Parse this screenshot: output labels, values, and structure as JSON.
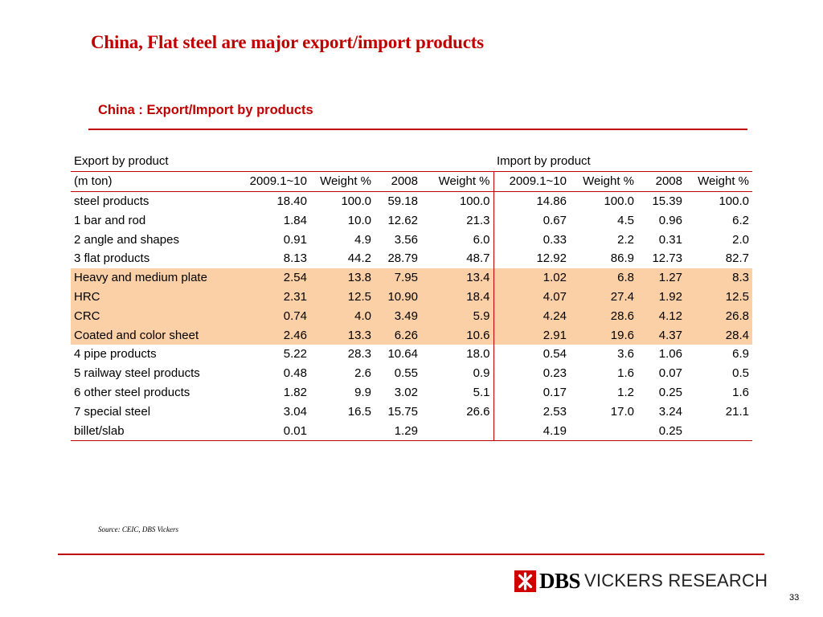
{
  "slide": {
    "title": "China, Flat steel are major export/import products",
    "subtitle": "China : Export/Import by products",
    "source": "Source: CEIC, DBS Vickers",
    "page_number": "33"
  },
  "logo": {
    "brand": "DBS",
    "text": "VICKERS RESEARCH",
    "accent_color": "#d00000"
  },
  "table": {
    "group_headers": [
      "Export by product",
      "Import by product"
    ],
    "columns": [
      "(m ton)",
      "2009.1~10",
      "Weight %",
      "2008",
      "Weight %",
      "2009.1~10",
      "Weight %",
      "2008",
      "Weight %"
    ],
    "highlight_color": "#fcd0a6",
    "rows": [
      {
        "label": "steel products",
        "cells": [
          "18.40",
          "100.0",
          "59.18",
          "100.0",
          "14.86",
          "100.0",
          "15.39",
          "100.0"
        ],
        "highlight": false
      },
      {
        "label": "1 bar and rod",
        "cells": [
          "1.84",
          "10.0",
          "12.62",
          "21.3",
          "0.67",
          "4.5",
          "0.96",
          "6.2"
        ],
        "highlight": false
      },
      {
        "label": "2 angle and shapes",
        "cells": [
          "0.91",
          "4.9",
          "3.56",
          "6.0",
          "0.33",
          "2.2",
          "0.31",
          "2.0"
        ],
        "highlight": false
      },
      {
        "label": "3 flat products",
        "cells": [
          "8.13",
          "44.2",
          "28.79",
          "48.7",
          "12.92",
          "86.9",
          "12.73",
          "82.7"
        ],
        "highlight": false
      },
      {
        "label": "Heavy and medium plate",
        "cells": [
          "2.54",
          "13.8",
          "7.95",
          "13.4",
          "1.02",
          "6.8",
          "1.27",
          "8.3"
        ],
        "highlight": true
      },
      {
        "label": "HRC",
        "cells": [
          "2.31",
          "12.5",
          "10.90",
          "18.4",
          "4.07",
          "27.4",
          "1.92",
          "12.5"
        ],
        "highlight": true
      },
      {
        "label": "CRC",
        "cells": [
          "0.74",
          "4.0",
          "3.49",
          "5.9",
          "4.24",
          "28.6",
          "4.12",
          "26.8"
        ],
        "highlight": true
      },
      {
        "label": "Coated and color sheet",
        "cells": [
          "2.46",
          "13.3",
          "6.26",
          "10.6",
          "2.91",
          "19.6",
          "4.37",
          "28.4"
        ],
        "highlight": true
      },
      {
        "label": "4 pipe products",
        "cells": [
          "5.22",
          "28.3",
          "10.64",
          "18.0",
          "0.54",
          "3.6",
          "1.06",
          "6.9"
        ],
        "highlight": false
      },
      {
        "label": "5 railway steel products",
        "cells": [
          "0.48",
          "2.6",
          "0.55",
          "0.9",
          "0.23",
          "1.6",
          "0.07",
          "0.5"
        ],
        "highlight": false
      },
      {
        "label": "6 other steel products",
        "cells": [
          "1.82",
          "9.9",
          "3.02",
          "5.1",
          "0.17",
          "1.2",
          "0.25",
          "1.6"
        ],
        "highlight": false
      },
      {
        "label": "7 special steel",
        "cells": [
          "3.04",
          "16.5",
          "15.75",
          "26.6",
          "2.53",
          "17.0",
          "3.24",
          "21.1"
        ],
        "highlight": false
      },
      {
        "label": "billet/slab",
        "cells": [
          "0.01",
          "",
          "1.29",
          "",
          "4.19",
          "",
          "0.25",
          ""
        ],
        "highlight": false
      }
    ]
  }
}
